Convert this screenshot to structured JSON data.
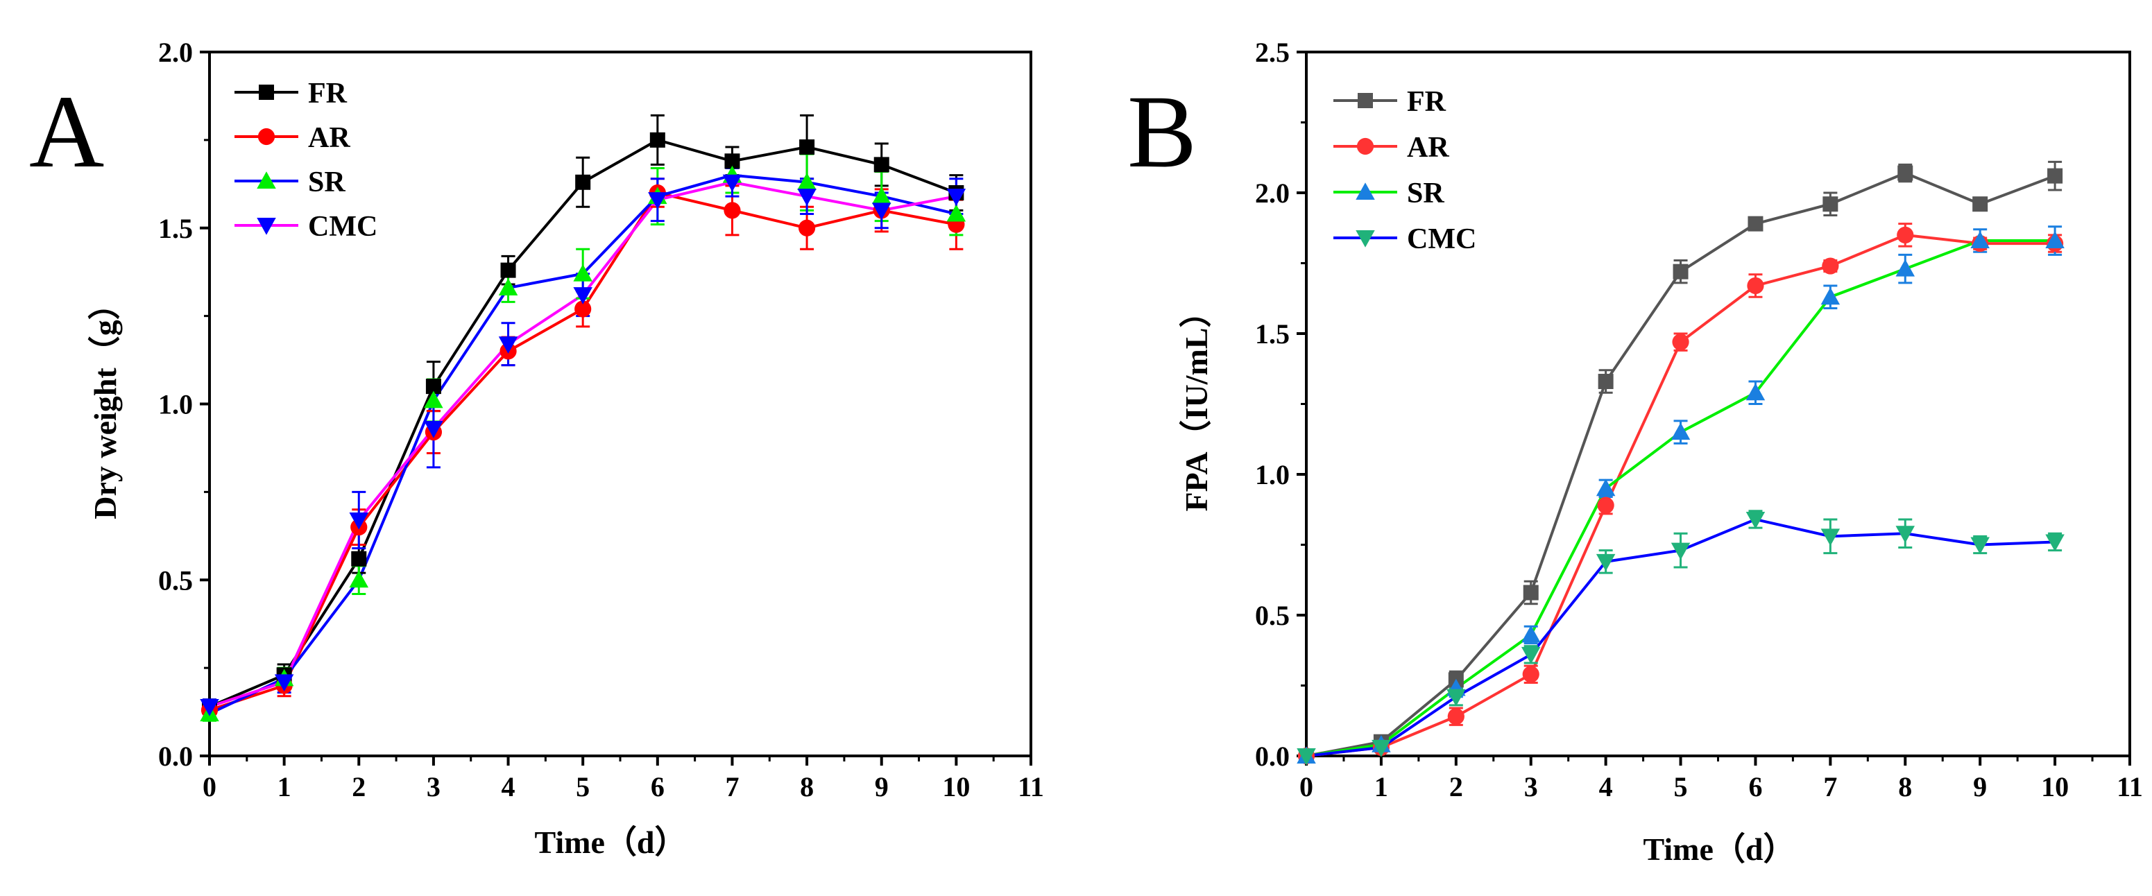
{
  "chart_data": [
    {
      "type": "line",
      "panel_label": "A",
      "title": "",
      "xlabel": "Time（d）",
      "ylabel": "Dry weight（g）",
      "xlim": [
        0,
        11
      ],
      "ylim": [
        0.0,
        2.0
      ],
      "xticks": [
        0,
        1,
        2,
        3,
        4,
        5,
        6,
        7,
        8,
        9,
        10,
        11
      ],
      "yticks": [
        0.0,
        0.5,
        1.0,
        1.5,
        2.0
      ],
      "ytick_labels": [
        "0.0",
        "0.5",
        "1.0",
        "1.5",
        "2.0"
      ],
      "grid": false,
      "legend_position": "top-left",
      "x": [
        0,
        1,
        2,
        3,
        4,
        5,
        6,
        7,
        8,
        9,
        10
      ],
      "series": [
        {
          "name": "FR",
          "color": "#000000",
          "marker": "square",
          "values": [
            0.14,
            0.23,
            0.56,
            1.05,
            1.38,
            1.63,
            1.75,
            1.69,
            1.73,
            1.68,
            1.6
          ],
          "errors": [
            0.02,
            0.03,
            0.04,
            0.07,
            0.04,
            0.07,
            0.07,
            0.04,
            0.09,
            0.06,
            0.05
          ]
        },
        {
          "name": "AR",
          "color": "#ff0000",
          "marker": "circle",
          "values": [
            0.13,
            0.2,
            0.65,
            0.92,
            1.15,
            1.27,
            1.6,
            1.55,
            1.5,
            1.55,
            1.51
          ],
          "errors": [
            0.02,
            0.03,
            0.05,
            0.06,
            0.04,
            0.05,
            0.04,
            0.07,
            0.06,
            0.06,
            0.07
          ]
        },
        {
          "name": "SR",
          "color": "#0000ff",
          "marker": "triangle-up",
          "marker_color": "#00ee00",
          "values": [
            0.12,
            0.22,
            0.5,
            1.01,
            1.33,
            1.37,
            1.59,
            1.65,
            1.63,
            1.59,
            1.54
          ],
          "errors": [
            0.02,
            0.03,
            0.04,
            0.06,
            0.04,
            0.07,
            0.08,
            0.05,
            0.08,
            0.07,
            0.06
          ]
        },
        {
          "name": "CMC",
          "color": "#ff00ff",
          "marker": "triangle-down",
          "marker_color": "#0000ff",
          "values": [
            0.14,
            0.21,
            0.67,
            0.93,
            1.17,
            1.31,
            1.58,
            1.63,
            1.59,
            1.55,
            1.59
          ],
          "errors": [
            0.02,
            0.03,
            0.08,
            0.11,
            0.06,
            0.06,
            0.06,
            0.04,
            0.05,
            0.05,
            0.05
          ]
        }
      ]
    },
    {
      "type": "line",
      "panel_label": "B",
      "title": "",
      "xlabel": "Time（d）",
      "ylabel": "FPA（IU/mL）",
      "xlim": [
        0,
        11
      ],
      "ylim": [
        0.0,
        2.5
      ],
      "xticks": [
        0,
        1,
        2,
        3,
        4,
        5,
        6,
        7,
        8,
        9,
        10,
        11
      ],
      "yticks": [
        0.0,
        0.5,
        1.0,
        1.5,
        2.0,
        2.5
      ],
      "ytick_labels": [
        "0.0",
        "0.5",
        "1.0",
        "1.5",
        "2.0",
        "2.5"
      ],
      "grid": false,
      "legend_position": "top-left",
      "x": [
        0,
        1,
        2,
        3,
        4,
        5,
        6,
        7,
        8,
        9,
        10
      ],
      "series": [
        {
          "name": "FR",
          "color": "#555555",
          "marker": "square",
          "values": [
            0.0,
            0.05,
            0.27,
            0.58,
            1.33,
            1.72,
            1.89,
            1.96,
            2.07,
            1.96,
            2.06
          ],
          "errors": [
            0.0,
            0.02,
            0.03,
            0.04,
            0.04,
            0.04,
            0.02,
            0.04,
            0.03,
            0.02,
            0.05
          ]
        },
        {
          "name": "AR",
          "color": "#ff3333",
          "marker": "circle",
          "values": [
            0.0,
            0.03,
            0.14,
            0.29,
            0.89,
            1.47,
            1.67,
            1.74,
            1.85,
            1.82,
            1.82
          ],
          "errors": [
            0.0,
            0.01,
            0.03,
            0.03,
            0.03,
            0.03,
            0.04,
            0.02,
            0.04,
            0.02,
            0.03
          ]
        },
        {
          "name": "SR",
          "color": "#00ee00",
          "marker": "triangle-up",
          "marker_color": "#1a7fe0",
          "values": [
            0.0,
            0.04,
            0.24,
            0.43,
            0.95,
            1.15,
            1.29,
            1.63,
            1.73,
            1.83,
            1.83
          ],
          "errors": [
            0.0,
            0.01,
            0.03,
            0.03,
            0.03,
            0.04,
            0.04,
            0.04,
            0.05,
            0.04,
            0.05
          ]
        },
        {
          "name": "CMC",
          "color": "#0000ff",
          "marker": "triangle-down",
          "marker_color": "#20b27a",
          "values": [
            0.0,
            0.03,
            0.21,
            0.36,
            0.69,
            0.73,
            0.84,
            0.78,
            0.79,
            0.75,
            0.76
          ],
          "errors": [
            0.0,
            0.01,
            0.03,
            0.03,
            0.04,
            0.06,
            0.03,
            0.06,
            0.05,
            0.03,
            0.03
          ]
        }
      ]
    }
  ]
}
